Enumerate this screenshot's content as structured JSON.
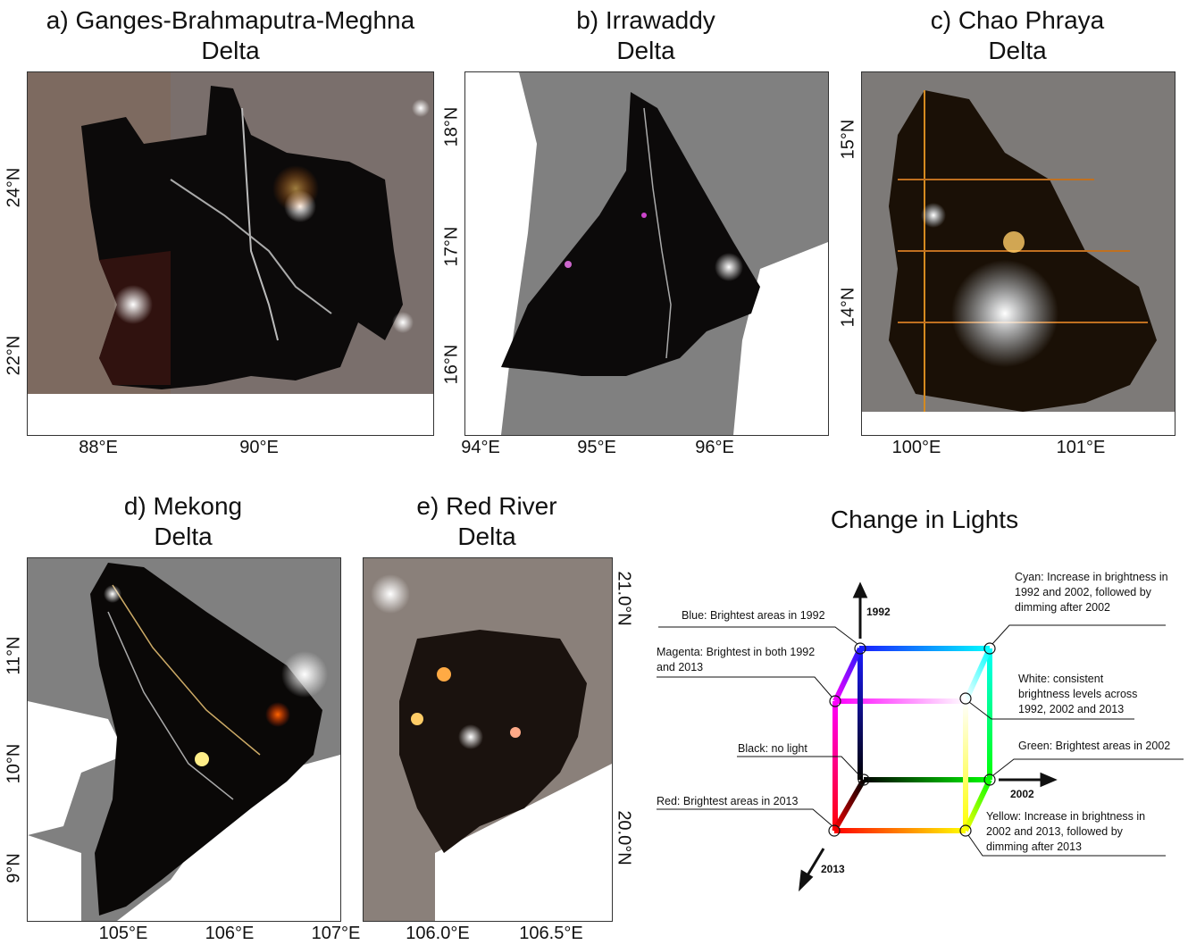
{
  "panels": [
    {
      "id": "a",
      "title_line1": "a) Ganges-Brahmaputra-Meghna",
      "title_line2": "Delta",
      "x_ticks": [
        "88°E",
        "90°E"
      ],
      "y_ticks": [
        "24°N",
        "22°N"
      ]
    },
    {
      "id": "b",
      "title_line1": "b) Irrawaddy",
      "title_line2": "Delta",
      "x_ticks": [
        "94°E",
        "95°E",
        "96°E"
      ],
      "y_ticks": [
        "18°N",
        "17°N",
        "16°N"
      ]
    },
    {
      "id": "c",
      "title_line1": "c) Chao Phraya",
      "title_line2": "Delta",
      "x_ticks": [
        "100°E",
        "101°E"
      ],
      "y_ticks": [
        "15°N",
        "14°N"
      ]
    },
    {
      "id": "d",
      "title_line1": "d) Mekong",
      "title_line2": "Delta",
      "x_ticks": [
        "105°E",
        "106°E",
        "107°E"
      ],
      "y_ticks": [
        "11°N",
        "10°N",
        "9°N"
      ]
    },
    {
      "id": "e",
      "title_line1": "e) Red River",
      "title_line2": "Delta",
      "x_ticks": [
        "106.0°E",
        "106.5°E"
      ],
      "y_ticks": [
        "21.0°N",
        "20.0°N"
      ]
    }
  ],
  "legend": {
    "title": "Change in Lights",
    "axes": {
      "up": "1992",
      "right": "2002",
      "down": "2013"
    },
    "labels": {
      "blue": "Blue: Brightest areas in 1992",
      "magenta": "Magenta: Brightest in both 1992 and 2013",
      "black": "Black: no light",
      "red": "Red: Brightest areas in 2013",
      "cyan": "Cyan: Increase in brightness in 1992 and 2002, followed by dimming after 2002",
      "white": "White: consistent brightness levels across 1992, 2002 and 2013",
      "green": "Green: Brightest areas in 2002",
      "yellow": "Yellow: Increase in brightness in 2002 and 2013, followed by dimming after 2013"
    },
    "colors": {
      "blue": "#1a1aff",
      "magenta": "#ff00ff",
      "black": "#000000",
      "red": "#ff0000",
      "cyan": "#00ffff",
      "white": "#ffffff",
      "green": "#00ff00",
      "yellow": "#ffff00"
    }
  }
}
